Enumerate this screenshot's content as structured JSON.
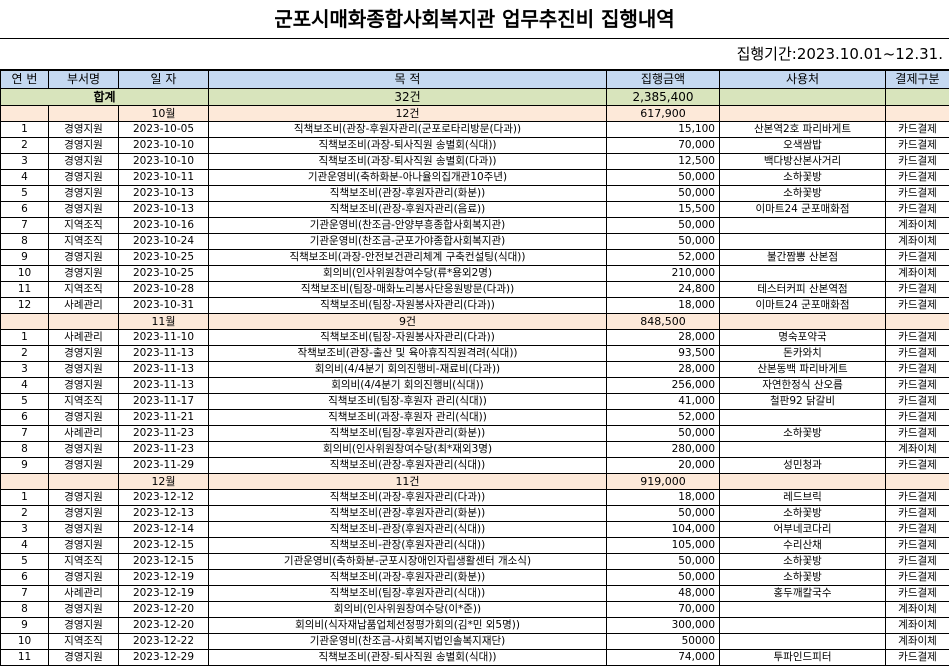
{
  "title": "군포시매화종합사회복지관 업무추진비 집행내역",
  "period": "집행기간:2023.10.01~12.31.",
  "headers": [
    "연 번",
    "부서명",
    "일 자",
    "목 적",
    "집행금액",
    "사용처",
    "결제구분"
  ],
  "total": {
    "label": "합계",
    "count": "32건",
    "amount": "2,385,400"
  },
  "months": [
    {
      "label": "10월",
      "count": "12건",
      "amount": "617,900",
      "rows": [
        {
          "no": "1",
          "dept": "경영지원",
          "date": "2023-10-05",
          "purpose": "직책보조비(관장-후원자관리(군포로타리방문(다과))",
          "amount": "15,100",
          "place": "산본역2호 파리바게트",
          "pay": "카드결제"
        },
        {
          "no": "2",
          "dept": "경영지원",
          "date": "2023-10-10",
          "purpose": "직책보조비(과장-퇴사직원 송별회(식대))",
          "amount": "70,000",
          "place": "오색쌈밥",
          "pay": "카드결제"
        },
        {
          "no": "3",
          "dept": "경영지원",
          "date": "2023-10-10",
          "purpose": "직책보조비(과장-퇴사직원 송별회(다과))",
          "amount": "12,500",
          "place": "백다방산본사거리",
          "pay": "카드결제"
        },
        {
          "no": "4",
          "dept": "경영지원",
          "date": "2023-10-11",
          "purpose": "기관운영비(축하화분-아나율의집개관10주년)",
          "amount": "50,000",
          "place": "소하꽃방",
          "pay": "카드결제"
        },
        {
          "no": "5",
          "dept": "경영지원",
          "date": "2023-10-13",
          "purpose": "직책보조비(관장-후원자관리(화분))",
          "amount": "50,000",
          "place": "소하꽃방",
          "pay": "카드결제"
        },
        {
          "no": "6",
          "dept": "경영지원",
          "date": "2023-10-13",
          "purpose": "직책보조비(관장-후원자관리(음료))",
          "amount": "15,500",
          "place": "이마트24 군포매화점",
          "pay": "카드결제"
        },
        {
          "no": "7",
          "dept": "지역조직",
          "date": "2023-10-16",
          "purpose": "기관운영비(찬조금-안양부흥종합사회복지관)",
          "amount": "50,000",
          "place": "",
          "pay": "계좌이체"
        },
        {
          "no": "8",
          "dept": "지역조직",
          "date": "2023-10-24",
          "purpose": "기관운영비(찬조금-군포가야종합사회복지관)",
          "amount": "50,000",
          "place": "",
          "pay": "계좌이체"
        },
        {
          "no": "9",
          "dept": "경영지원",
          "date": "2023-10-25",
          "purpose": "직책보조비(과장-안전보건관리체계 구축컨설팅(식대))",
          "amount": "52,000",
          "place": "불간짬뽕 산본점",
          "pay": "카드결제"
        },
        {
          "no": "10",
          "dept": "경영지원",
          "date": "2023-10-25",
          "purpose": "회의비(인사위원창여수당(류*용외2명)",
          "amount": "210,000",
          "place": "",
          "pay": "계좌이체"
        },
        {
          "no": "11",
          "dept": "지역조직",
          "date": "2023-10-28",
          "purpose": "직책보조비(팀장-매화노리봉사단응원방문(다과))",
          "amount": "24,800",
          "place": "테스터커피 산본역점",
          "pay": "카드결제"
        },
        {
          "no": "12",
          "dept": "사례관리",
          "date": "2023-10-31",
          "purpose": "직책보조비(팀장-자원봉사자관리(다과))",
          "amount": "18,000",
          "place": "이마트24 군포매화점",
          "pay": "카드결제"
        }
      ]
    },
    {
      "label": "11월",
      "count": "9건",
      "amount": "848,500",
      "rows": [
        {
          "no": "1",
          "dept": "사례관리",
          "date": "2023-11-10",
          "purpose": "직책보조비(팀장-자원봉사자관리(다과))",
          "amount": "28,000",
          "place": "명숙포약국",
          "pay": "카드결제"
        },
        {
          "no": "2",
          "dept": "경영지원",
          "date": "2023-11-13",
          "purpose": "작책보조비(관장-출산 및 육아휴직직원격려(식대))",
          "amount": "93,500",
          "place": "돈카와치",
          "pay": "카드결제"
        },
        {
          "no": "3",
          "dept": "경영지원",
          "date": "2023-11-13",
          "purpose": "회의비(4/4분기 회의진행비-재료비(다과))",
          "amount": "28,000",
          "place": "산본동백 파리바게트",
          "pay": "카드결제"
        },
        {
          "no": "4",
          "dept": "경영지원",
          "date": "2023-11-13",
          "purpose": "회의비(4/4분기 회의진행비(식대))",
          "amount": "256,000",
          "place": "자연한정식 산오름",
          "pay": "카드결제"
        },
        {
          "no": "5",
          "dept": "지역조직",
          "date": "2023-11-17",
          "purpose": "직책보조비(팀장-후원자 관리(식대))",
          "amount": "41,000",
          "place": "철판92 닭갈비",
          "pay": "카드결제"
        },
        {
          "no": "6",
          "dept": "경영지원",
          "date": "2023-11-21",
          "purpose": "직책보조비(과장-후원자 관리(식대))",
          "amount": "52,000",
          "place": "",
          "pay": "카드결제"
        },
        {
          "no": "7",
          "dept": "사례관리",
          "date": "2023-11-23",
          "purpose": "직책보조비(팀장-후원자관리(화분))",
          "amount": "50,000",
          "place": "소하꽃방",
          "pay": "카드결제"
        },
        {
          "no": "8",
          "dept": "경영지원",
          "date": "2023-11-23",
          "purpose": "회의비(인사위원창여수당(최*재외3명)",
          "amount": "280,000",
          "place": "",
          "pay": "계좌이체"
        },
        {
          "no": "9",
          "dept": "경영지원",
          "date": "2023-11-29",
          "purpose": "직책보조비(관장-후원자관리(식대))",
          "amount": "20,000",
          "place": "성민청과",
          "pay": "카드결제"
        }
      ]
    },
    {
      "label": "12월",
      "count": "11건",
      "amount": "919,000",
      "rows": [
        {
          "no": "1",
          "dept": "경영지원",
          "date": "2023-12-12",
          "purpose": "직책보조비(과장-후원자관리(다과))",
          "amount": "18,000",
          "place": "레드브릭",
          "pay": "카드결제"
        },
        {
          "no": "2",
          "dept": "경영지원",
          "date": "2023-12-13",
          "purpose": "직책보조비(관장-후원자관리(화분))",
          "amount": "50,000",
          "place": "소하꽃방",
          "pay": "카드결제"
        },
        {
          "no": "3",
          "dept": "경영지원",
          "date": "2023-12-14",
          "purpose": "직책보조비-관장(후원자관리(식대))",
          "amount": "104,000",
          "place": "어부네코다리",
          "pay": "카드결제"
        },
        {
          "no": "4",
          "dept": "경영지원",
          "date": "2023-12-15",
          "purpose": "직책보조비-관장(후원자관리(식대))",
          "amount": "105,000",
          "place": "수리산채",
          "pay": "카드결제"
        },
        {
          "no": "5",
          "dept": "지역조직",
          "date": "2023-12-15",
          "purpose": "기관운영비(축하화분-군포시장애인자립생활센터 개소식)",
          "amount": "50,000",
          "place": "소하꽃방",
          "pay": "카드결제"
        },
        {
          "no": "6",
          "dept": "경영지원",
          "date": "2023-12-19",
          "purpose": "직책보조비(과장-후원자관리(화분))",
          "amount": "50,000",
          "place": "소하꽃방",
          "pay": "카드결제"
        },
        {
          "no": "7",
          "dept": "사례관리",
          "date": "2023-12-19",
          "purpose": "직책보조비(팀장-후원자관리(식대))",
          "amount": "48,000",
          "place": "홍두깨칼국수",
          "pay": "카드결제"
        },
        {
          "no": "8",
          "dept": "경영지원",
          "date": "2023-12-20",
          "purpose": "회의비(인사위원창여수당(이*준))",
          "amount": "70,000",
          "place": "",
          "pay": "계좌이체"
        },
        {
          "no": "9",
          "dept": "경영지원",
          "date": "2023-12-20",
          "purpose": "회의비(식자재납품업체선정평가회의(김*민 외5명))",
          "amount": "300,000",
          "place": "",
          "pay": "계좌이체"
        },
        {
          "no": "10",
          "dept": "지역조직",
          "date": "2023-12-22",
          "purpose": "기관운영비(찬조금-사회복지법인솔복지재단)",
          "amount": "50000",
          "place": "",
          "pay": "계좌이체"
        },
        {
          "no": "11",
          "dept": "경영지원",
          "date": "2023-12-29",
          "purpose": "직책보조비(관장-퇴사직원 송별회(식대))",
          "amount": "74,000",
          "place": "투파인드피터",
          "pay": "카드결제"
        }
      ]
    }
  ]
}
